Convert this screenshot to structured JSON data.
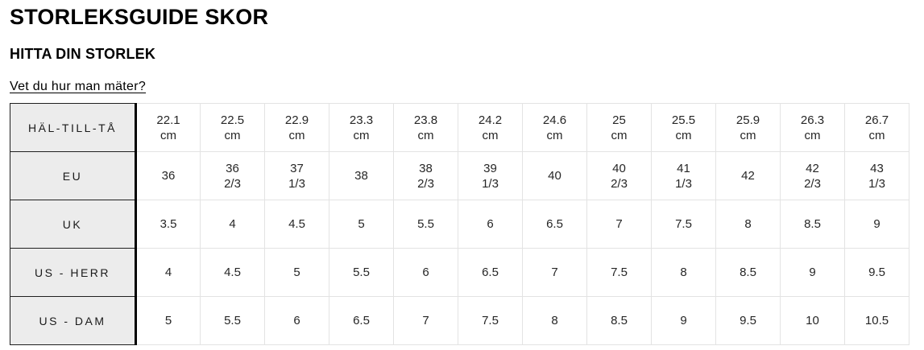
{
  "page": {
    "title": "STORLEKSGUIDE SKOR",
    "subtitle": "HITTA DIN STORLEK",
    "measure_link": "Vet du hur man mäter?"
  },
  "table": {
    "rows": [
      {
        "key": "hal-till-ta",
        "label": "HÄL-TILL-TÅ",
        "values": [
          "22.1\ncm",
          "22.5\ncm",
          "22.9\ncm",
          "23.3\ncm",
          "23.8\ncm",
          "24.2\ncm",
          "24.6\ncm",
          "25\ncm",
          "25.5\ncm",
          "25.9\ncm",
          "26.3\ncm",
          "26.7\ncm"
        ]
      },
      {
        "key": "eu",
        "label": "EU",
        "values": [
          "36",
          "36\n2/3",
          "37\n1/3",
          "38",
          "38\n2/3",
          "39\n1/3",
          "40",
          "40\n2/3",
          "41\n1/3",
          "42",
          "42\n2/3",
          "43\n1/3"
        ]
      },
      {
        "key": "uk",
        "label": "UK",
        "values": [
          "3.5",
          "4",
          "4.5",
          "5",
          "5.5",
          "6",
          "6.5",
          "7",
          "7.5",
          "8",
          "8.5",
          "9"
        ]
      },
      {
        "key": "us-herr",
        "label": "US - HERR",
        "values": [
          "4",
          "4.5",
          "5",
          "5.5",
          "6",
          "6.5",
          "7",
          "7.5",
          "8",
          "8.5",
          "9",
          "9.5"
        ]
      },
      {
        "key": "us-dam",
        "label": "US - DAM",
        "values": [
          "5",
          "5.5",
          "6",
          "6.5",
          "7",
          "7.5",
          "8",
          "8.5",
          "9",
          "9.5",
          "10",
          "10.5"
        ]
      }
    ]
  },
  "colors": {
    "label_column_background": "#ececec",
    "label_column_border": "#1f1f1f",
    "label_column_divider": "#000000",
    "data_cell_border": "#e3e3e3",
    "text": "#000000"
  }
}
